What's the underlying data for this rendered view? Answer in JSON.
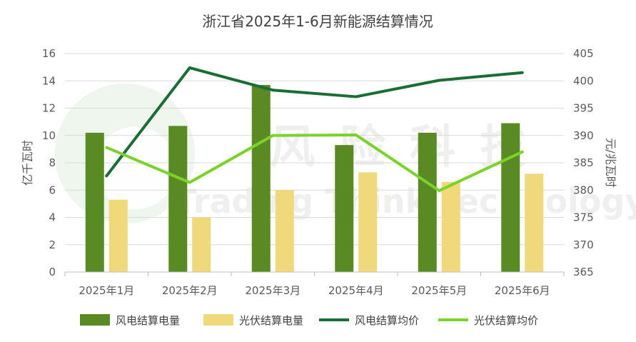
{
  "chart_data": {
    "type": "bar",
    "title": "浙江省2025年1-6月新能源结算情况",
    "categories": [
      "2025年1月",
      "2025年2月",
      "2025年3月",
      "2025年4月",
      "2025年5月",
      "2025年6月"
    ],
    "ylabel_left": "亿千瓦时",
    "ylabel_right": "元/兆瓦时",
    "ylim_left": [
      0,
      16
    ],
    "ylim_right": [
      365,
      405
    ],
    "yticks_left": [
      0,
      2,
      4,
      6,
      8,
      10,
      12,
      14,
      16
    ],
    "yticks_right": [
      365,
      370,
      375,
      380,
      385,
      390,
      395,
      400,
      405
    ],
    "grid": true,
    "legend_position": "bottom",
    "series": [
      {
        "name": "风电结算电量",
        "kind": "bar",
        "axis": "left",
        "color": "#5a8a23",
        "values": [
          10.2,
          10.7,
          13.7,
          9.3,
          10.2,
          10.9
        ]
      },
      {
        "name": "光伏结算电量",
        "kind": "bar",
        "axis": "left",
        "color": "#efd97a",
        "values": [
          5.3,
          4.0,
          6.0,
          7.3,
          6.6,
          7.2
        ]
      },
      {
        "name": "风电结算均价",
        "kind": "line",
        "axis": "right",
        "color": "#1a6e35",
        "values": [
          382.6,
          402.4,
          398.3,
          397.1,
          400.1,
          401.5
        ]
      },
      {
        "name": "光伏结算均价",
        "kind": "line",
        "axis": "right",
        "color": "#7bd22a",
        "values": [
          387.8,
          381.4,
          390.0,
          390.1,
          379.9,
          387.0
        ]
      }
    ]
  },
  "watermark": {
    "line1": "风 险 科 技",
    "line2": "Trading Think Technology"
  }
}
